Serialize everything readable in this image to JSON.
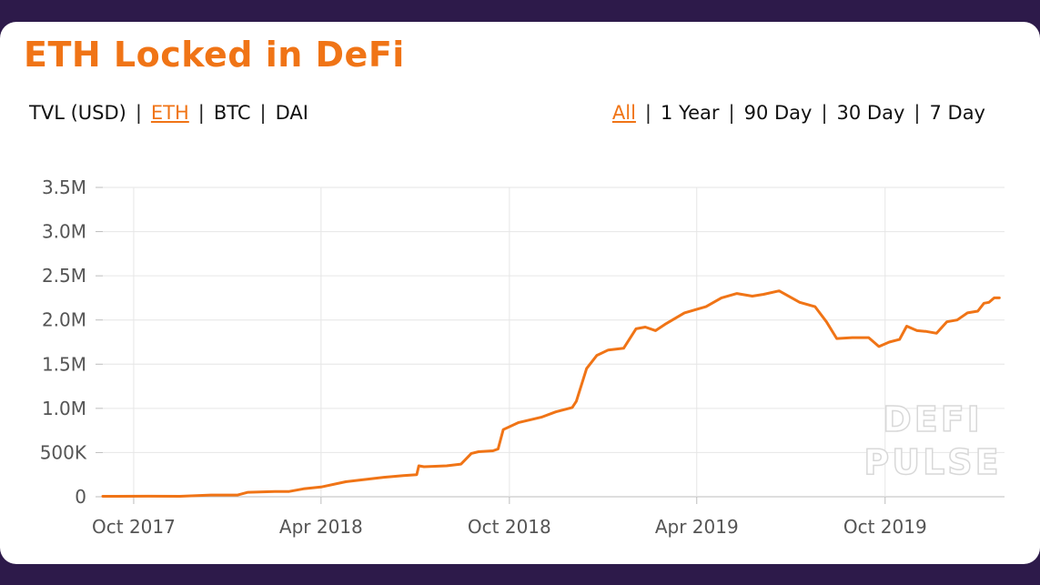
{
  "header": {
    "title": "ETH Locked in DeFi"
  },
  "unit_toggle": {
    "items": [
      "TVL (USD)",
      "ETH",
      "BTC",
      "DAI"
    ],
    "active": "ETH"
  },
  "range_toggle": {
    "items": [
      "All",
      "1 Year",
      "90 Day",
      "30 Day",
      "7 Day"
    ],
    "active": "All"
  },
  "watermark": {
    "line1": "DEFI",
    "line2": "PULSE"
  },
  "colors": {
    "accent": "#f07416",
    "background": "#2d1a4a",
    "grid": "#e6e6e6"
  },
  "chart_data": {
    "type": "line",
    "title": "ETH Locked in DeFi",
    "xlabel": "",
    "ylabel": "",
    "grid": true,
    "legend": "none",
    "x_range": [
      "2017-09-01",
      "2020-01-25"
    ],
    "ylim": [
      0,
      3500000
    ],
    "y_ticks": [
      0,
      500000,
      1000000,
      1500000,
      2000000,
      2500000,
      3000000,
      3500000
    ],
    "y_tick_labels": [
      "0",
      "500K",
      "1.0M",
      "1.5M",
      "2.0M",
      "2.5M",
      "3.0M",
      "3.5M"
    ],
    "x_ticks": [
      "2017-10-01",
      "2018-04-01",
      "2018-10-01",
      "2019-04-01",
      "2019-10-01"
    ],
    "x_tick_labels": [
      "Oct 2017",
      "Apr 2018",
      "Oct 2018",
      "Apr 2019",
      "Oct 2019"
    ],
    "series": [
      {
        "color": "#f07416",
        "points": [
          [
            "2017-09-01",
            5000
          ],
          [
            "2017-10-15",
            6000
          ],
          [
            "2017-11-15",
            5000
          ],
          [
            "2017-12-15",
            20000
          ],
          [
            "2018-01-10",
            20000
          ],
          [
            "2018-01-20",
            50000
          ],
          [
            "2018-02-15",
            60000
          ],
          [
            "2018-03-01",
            60000
          ],
          [
            "2018-03-15",
            90000
          ],
          [
            "2018-04-01",
            110000
          ],
          [
            "2018-04-25",
            170000
          ],
          [
            "2018-05-10",
            190000
          ],
          [
            "2018-06-01",
            220000
          ],
          [
            "2018-06-20",
            240000
          ],
          [
            "2018-07-03",
            250000
          ],
          [
            "2018-07-05",
            350000
          ],
          [
            "2018-07-10",
            340000
          ],
          [
            "2018-08-01",
            350000
          ],
          [
            "2018-08-15",
            370000
          ],
          [
            "2018-08-25",
            490000
          ],
          [
            "2018-09-01",
            510000
          ],
          [
            "2018-09-15",
            520000
          ],
          [
            "2018-09-20",
            540000
          ],
          [
            "2018-09-25",
            760000
          ],
          [
            "2018-10-10",
            840000
          ],
          [
            "2018-11-01",
            900000
          ],
          [
            "2018-11-15",
            960000
          ],
          [
            "2018-12-01",
            1010000
          ],
          [
            "2018-12-05",
            1080000
          ],
          [
            "2018-12-15",
            1450000
          ],
          [
            "2018-12-25",
            1600000
          ],
          [
            "2019-01-05",
            1660000
          ],
          [
            "2019-01-20",
            1680000
          ],
          [
            "2019-02-01",
            1900000
          ],
          [
            "2019-02-10",
            1920000
          ],
          [
            "2019-02-20",
            1880000
          ],
          [
            "2019-03-01",
            1950000
          ],
          [
            "2019-03-20",
            2080000
          ],
          [
            "2019-04-10",
            2150000
          ],
          [
            "2019-04-25",
            2250000
          ],
          [
            "2019-05-10",
            2300000
          ],
          [
            "2019-05-25",
            2270000
          ],
          [
            "2019-06-05",
            2290000
          ],
          [
            "2019-06-20",
            2330000
          ],
          [
            "2019-07-10",
            2200000
          ],
          [
            "2019-07-25",
            2150000
          ],
          [
            "2019-08-05",
            1980000
          ],
          [
            "2019-08-15",
            1790000
          ],
          [
            "2019-08-30",
            1800000
          ],
          [
            "2019-09-15",
            1800000
          ],
          [
            "2019-09-25",
            1700000
          ],
          [
            "2019-10-05",
            1750000
          ],
          [
            "2019-10-15",
            1780000
          ],
          [
            "2019-10-22",
            1930000
          ],
          [
            "2019-11-01",
            1880000
          ],
          [
            "2019-11-10",
            1870000
          ],
          [
            "2019-11-20",
            1850000
          ],
          [
            "2019-11-30",
            1980000
          ],
          [
            "2019-12-10",
            2000000
          ],
          [
            "2019-12-20",
            2080000
          ],
          [
            "2019-12-30",
            2100000
          ],
          [
            "2020-01-05",
            2190000
          ],
          [
            "2020-01-10",
            2200000
          ],
          [
            "2020-01-15",
            2250000
          ],
          [
            "2020-01-18",
            2250000
          ],
          [
            "2020-01-20",
            2250000
          ]
        ]
      }
    ]
  }
}
